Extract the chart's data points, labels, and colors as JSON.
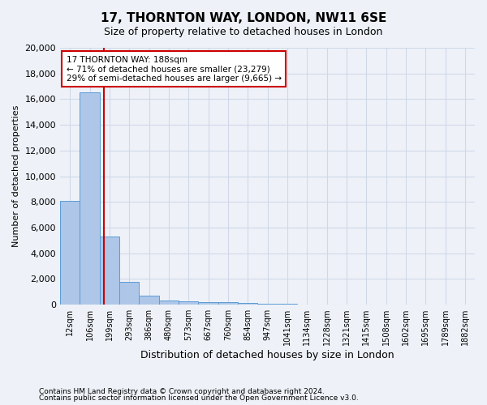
{
  "title_line1": "17, THORNTON WAY, LONDON, NW11 6SE",
  "title_line2": "Size of property relative to detached houses in London",
  "xlabel": "Distribution of detached houses by size in London",
  "ylabel": "Number of detached properties",
  "bar_values": [
    8100,
    16500,
    5300,
    1800,
    700,
    350,
    270,
    200,
    170,
    100,
    60,
    40,
    25,
    15,
    10,
    8,
    6,
    4,
    3,
    2,
    1
  ],
  "bar_labels": [
    "12sqm",
    "106sqm",
    "199sqm",
    "293sqm",
    "386sqm",
    "480sqm",
    "573sqm",
    "667sqm",
    "760sqm",
    "854sqm",
    "947sqm",
    "1041sqm",
    "1134sqm",
    "1228sqm",
    "1321sqm",
    "1415sqm",
    "1508sqm",
    "1602sqm",
    "1695sqm",
    "1789sqm",
    "1882sqm"
  ],
  "bar_color": "#aec6e8",
  "bar_edge_color": "#5b9bd5",
  "grid_color": "#d0d8e8",
  "vline_x": 1.72,
  "vline_color": "#cc0000",
  "annotation_text": "17 THORNTON WAY: 188sqm\n← 71% of detached houses are smaller (23,279)\n29% of semi-detached houses are larger (9,665) →",
  "annotation_box_color": "#ffffff",
  "annotation_box_edge": "#cc0000",
  "ylim": [
    0,
    20000
  ],
  "yticks": [
    0,
    2000,
    4000,
    6000,
    8000,
    10000,
    12000,
    14000,
    16000,
    18000,
    20000
  ],
  "footnote_line1": "Contains HM Land Registry data © Crown copyright and database right 2024.",
  "footnote_line2": "Contains public sector information licensed under the Open Government Licence v3.0.",
  "bg_color": "#eef2f8"
}
